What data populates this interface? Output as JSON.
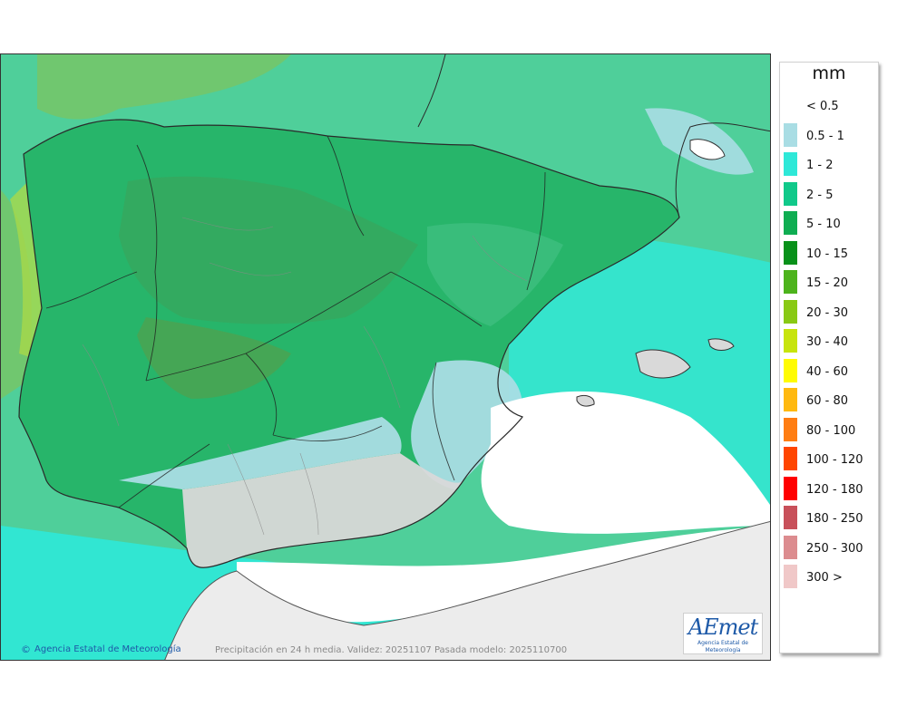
{
  "map": {
    "credit_text": "Agencia Estatal de Meteorología",
    "caption": "Precipitación en 24 h media. Validez: 20251107 Pasada modelo: 2025110700",
    "logo": {
      "brand": "AEmet",
      "subtitle": "Agencia Estatal de Meteorología"
    },
    "icons": [
      "copyright-icon"
    ]
  },
  "legend": {
    "unit": "mm",
    "items": [
      {
        "label": "< 0.5",
        "color": "#ffffff"
      },
      {
        "label": "0.5 - 1",
        "color": "#a9dde4"
      },
      {
        "label": "1 - 2",
        "color": "#2ee8d8"
      },
      {
        "label": "2 - 5",
        "color": "#10c98a"
      },
      {
        "label": "5 - 10",
        "color": "#0fad52"
      },
      {
        "label": "10 - 15",
        "color": "#08911a"
      },
      {
        "label": "15 - 20",
        "color": "#4db31c"
      },
      {
        "label": "20 - 30",
        "color": "#89c914"
      },
      {
        "label": "30 - 40",
        "color": "#c7e40c"
      },
      {
        "label": "40 - 60",
        "color": "#fffb02"
      },
      {
        "label": "60 - 80",
        "color": "#ffb90f"
      },
      {
        "label": "80 - 100",
        "color": "#ff7d12"
      },
      {
        "label": "100 - 120",
        "color": "#ff4500"
      },
      {
        "label": "120 - 180",
        "color": "#ff0000"
      },
      {
        "label": "180 - 250",
        "color": "#c8505a"
      },
      {
        "label": "250 - 300",
        "color": "#dc8c8f"
      },
      {
        "label": "300 >",
        "color": "#f0c8c8"
      }
    ]
  }
}
